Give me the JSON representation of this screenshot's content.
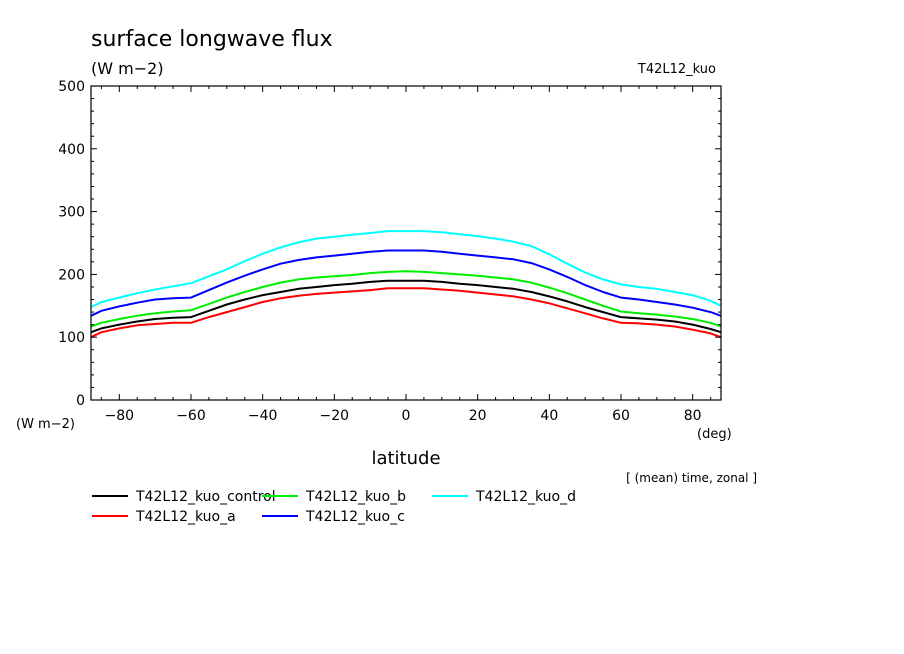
{
  "chart_data": {
    "type": "line",
    "title": "surface longwave flux",
    "units_label": "(W m−2)",
    "run_label": "T42L12_kuo",
    "ylabel": "(W m−2)",
    "xlabel": "latitude",
    "x_unit_label": "(deg)",
    "note": "[ (mean) time, zonal ]",
    "xlim": [
      -87.9,
      87.9
    ],
    "ylim": [
      0,
      500
    ],
    "xticks": [
      -80,
      -60,
      -40,
      -20,
      0,
      20,
      40,
      60,
      80
    ],
    "xtick_labels": [
      "−80",
      "−60",
      "−40",
      "−20",
      "0",
      "20",
      "40",
      "60",
      "80"
    ],
    "yticks": [
      0,
      100,
      200,
      300,
      400,
      500
    ],
    "ytick_labels": [
      "0",
      "100",
      "200",
      "300",
      "400",
      "500"
    ],
    "grid": false,
    "legend_position": "bottom-left",
    "x": [
      -87.9,
      -85,
      -80,
      -75,
      -70,
      -65,
      -60,
      -55,
      -50,
      -45,
      -40,
      -35,
      -30,
      -25,
      -20,
      -15,
      -10,
      -5,
      0,
      5,
      10,
      15,
      20,
      25,
      30,
      35,
      40,
      45,
      50,
      55,
      60,
      65,
      70,
      75,
      80,
      85,
      87.9
    ],
    "series": [
      {
        "name": "T42L12_kuo_control",
        "color": "#000000",
        "values": [
          108,
          114,
          120,
          125,
          129,
          131,
          132,
          142,
          152,
          160,
          167,
          172,
          177,
          180,
          183,
          185,
          188,
          190,
          190,
          190,
          188,
          185,
          183,
          180,
          177,
          172,
          165,
          157,
          148,
          140,
          132,
          130,
          128,
          125,
          120,
          113,
          108
        ]
      },
      {
        "name": "T42L12_kuo_a",
        "color": "#ff0000",
        "values": [
          100,
          108,
          114,
          119,
          121,
          123,
          123,
          132,
          140,
          148,
          156,
          162,
          166,
          169,
          171,
          173,
          175,
          178,
          178,
          178,
          176,
          174,
          171,
          168,
          165,
          160,
          154,
          146,
          138,
          130,
          123,
          122,
          120,
          117,
          112,
          106,
          100
        ]
      },
      {
        "name": "T42L12_kuo_b",
        "color": "#00ee00",
        "values": [
          117,
          123,
          129,
          134,
          138,
          141,
          143,
          153,
          163,
          172,
          180,
          187,
          192,
          195,
          197,
          199,
          202,
          204,
          205,
          204,
          202,
          200,
          198,
          195,
          192,
          187,
          179,
          170,
          160,
          150,
          141,
          138,
          136,
          133,
          129,
          123,
          117
        ]
      },
      {
        "name": "T42L12_kuo_c",
        "color": "#0000ff",
        "values": [
          134,
          142,
          149,
          155,
          160,
          162,
          163,
          175,
          187,
          198,
          208,
          217,
          223,
          227,
          230,
          233,
          236,
          238,
          238,
          238,
          236,
          233,
          230,
          227,
          224,
          218,
          208,
          196,
          183,
          172,
          163,
          160,
          156,
          152,
          147,
          140,
          134
        ]
      },
      {
        "name": "T42L12_kuo_d",
        "color": "#00ffff",
        "values": [
          148,
          156,
          163,
          170,
          176,
          181,
          186,
          197,
          208,
          221,
          233,
          243,
          251,
          257,
          260,
          263,
          266,
          269,
          269,
          269,
          267,
          264,
          261,
          257,
          252,
          245,
          232,
          217,
          203,
          192,
          184,
          180,
          177,
          172,
          167,
          158,
          150
        ]
      }
    ]
  }
}
